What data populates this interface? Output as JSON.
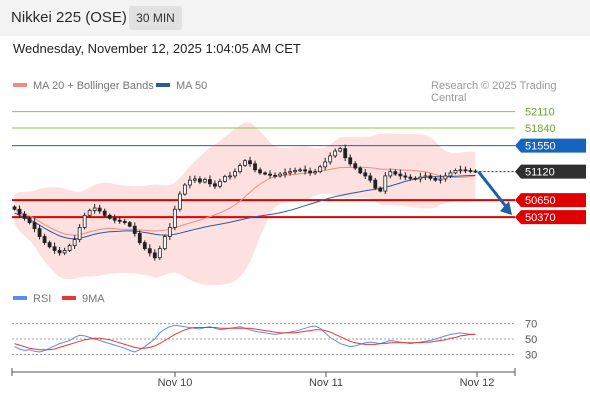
{
  "header": {
    "title": "Nikkei 225 (OSE)",
    "timeframe": "30 MIN"
  },
  "datetime": "Wednesday, November 12, 2025 1:04:05 AM CET",
  "legend": {
    "ma20": {
      "label": "MA 20 + Bollinger Bands",
      "color": "#f28b82"
    },
    "ma50": {
      "label": "MA 50",
      "color": "#2c5aa0"
    }
  },
  "credit": "Research © 2025 Trading Central",
  "rsi_legend": {
    "rsi": {
      "label": "RSI",
      "color": "#5b8def"
    },
    "ma9": {
      "label": "9MA",
      "color": "#e53935"
    }
  },
  "colors": {
    "resistance": "#8bc34a",
    "pivot": "#1565c0",
    "support": "#e00000",
    "current": "#2f2f2f",
    "band_fill": "#fde0e0",
    "arrow": "#1f5fa8",
    "up_candle": "#ffffff",
    "down_candle": "#222222"
  },
  "chart_data": {
    "type": "candlestick",
    "title": "Nikkei 225 (OSE)",
    "ylim": [
      49300,
      52500
    ],
    "x_ticks": [
      "Nov 10",
      "Nov 11",
      "Nov 12"
    ],
    "levels": [
      {
        "value": 52110,
        "label": "52110",
        "role": "resistance"
      },
      {
        "value": 51840,
        "label": "51840",
        "role": "resistance"
      },
      {
        "value": 51550,
        "label": "51550",
        "role": "pivot"
      },
      {
        "value": 51120,
        "label": "51120",
        "role": "current"
      },
      {
        "value": 50650,
        "label": "50650",
        "role": "support"
      },
      {
        "value": 50370,
        "label": "50370",
        "role": "support"
      }
    ],
    "close_series": [
      50500,
      50420,
      50350,
      50280,
      50180,
      50050,
      49950,
      49880,
      49820,
      49780,
      49820,
      49900,
      50000,
      50200,
      50400,
      50480,
      50520,
      50470,
      50400,
      50350,
      50320,
      50300,
      50280,
      50220,
      50100,
      49950,
      49850,
      49780,
      49700,
      49850,
      50050,
      50200,
      50500,
      50750,
      50900,
      50980,
      51000,
      50950,
      50990,
      50920,
      50880,
      50960,
      51040,
      51050,
      51120,
      51220,
      51300,
      51250,
      51150,
      51100,
      51080,
      51060,
      51050,
      51080,
      51100,
      51120,
      51140,
      51150,
      51130,
      51100,
      51120,
      51200,
      51280,
      51380,
      51460,
      51500,
      51350,
      51250,
      51180,
      51100,
      51050,
      50980,
      50850,
      50800,
      51050,
      51120,
      51080,
      51050,
      51030,
      51010,
      51000,
      51030,
      51050,
      51010,
      50980,
      51000,
      51050,
      51100,
      51140,
      51150,
      51140,
      51130,
      51120
    ],
    "ma20_label": "MA 20 + Bollinger Bands",
    "ma50_label": "MA 50",
    "rsi": {
      "levels": [
        70,
        50,
        30
      ],
      "ylim": [
        20,
        80
      ],
      "legend": [
        "RSI",
        "9MA"
      ],
      "rsi_values": [
        40,
        37,
        35,
        36,
        34,
        33,
        35,
        38,
        41,
        44,
        46,
        48,
        52,
        55,
        54,
        52,
        50,
        48,
        46,
        44,
        42,
        40,
        38,
        35,
        33,
        36,
        40,
        45,
        50,
        58,
        63,
        66,
        68,
        67,
        66,
        65,
        64,
        63,
        65,
        66,
        64,
        62,
        63,
        64,
        65,
        66,
        64,
        62,
        60,
        59,
        58,
        57,
        56,
        57,
        58,
        59,
        60,
        62,
        64,
        66,
        67,
        64,
        58,
        52,
        48,
        44,
        42,
        40,
        41,
        43,
        45,
        46,
        45,
        44,
        46,
        48,
        47,
        46,
        45,
        44,
        45,
        46,
        47,
        48,
        50,
        52,
        54,
        56,
        57,
        58,
        57,
        56,
        56
      ],
      "ma9_values": [
        44,
        42,
        40,
        38,
        37,
        36,
        36,
        36,
        37,
        39,
        41,
        43,
        45,
        47,
        49,
        50,
        51,
        51,
        50,
        49,
        47,
        45,
        43,
        41,
        39,
        38,
        38,
        39,
        41,
        44,
        48,
        52,
        56,
        59,
        62,
        64,
        65,
        65,
        65,
        65,
        65,
        64,
        64,
        64,
        64,
        64,
        64,
        64,
        63,
        62,
        61,
        60,
        59,
        58,
        58,
        58,
        58,
        59,
        60,
        61,
        62,
        62,
        61,
        59,
        56,
        53,
        50,
        47,
        45,
        44,
        43,
        43,
        43,
        44,
        44,
        45,
        45,
        45,
        45,
        45,
        45,
        45,
        46,
        46,
        47,
        48,
        49,
        51,
        52,
        54,
        55,
        56,
        56
      ]
    }
  }
}
